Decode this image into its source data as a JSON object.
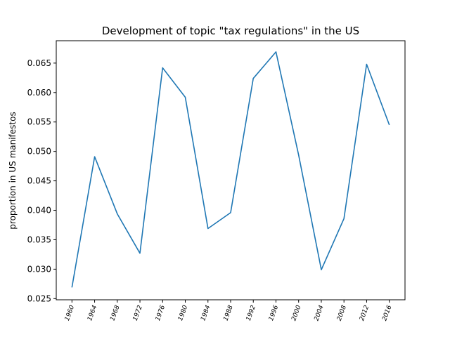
{
  "chart_data": {
    "type": "line",
    "title": "Development of topic \"tax regulations\" in the US",
    "xlabel": "",
    "ylabel": "proportion in US manifestos",
    "x": [
      "1960",
      "1964",
      "1968",
      "1972",
      "1976",
      "1980",
      "1984",
      "1988",
      "1992",
      "1996",
      "2000",
      "2004",
      "2008",
      "2012",
      "2016"
    ],
    "series": [
      {
        "values": [
          0.0269,
          0.0491,
          0.0394,
          0.0327,
          0.0642,
          0.0592,
          0.0369,
          0.0396,
          0.0624,
          0.0669,
          0.0494,
          0.0299,
          0.0386,
          0.0648,
          0.0545
        ]
      }
    ],
    "ylim": [
      0.0248,
      0.0688
    ],
    "yticks": [
      "0.025",
      "0.030",
      "0.035",
      "0.040",
      "0.045",
      "0.050",
      "0.055",
      "0.060",
      "0.065"
    ],
    "ytick_values": [
      0.025,
      0.03,
      0.035,
      0.04,
      0.045,
      0.05,
      0.055,
      0.06,
      0.065
    ],
    "grid": false,
    "line_color": "#1f77b4"
  }
}
